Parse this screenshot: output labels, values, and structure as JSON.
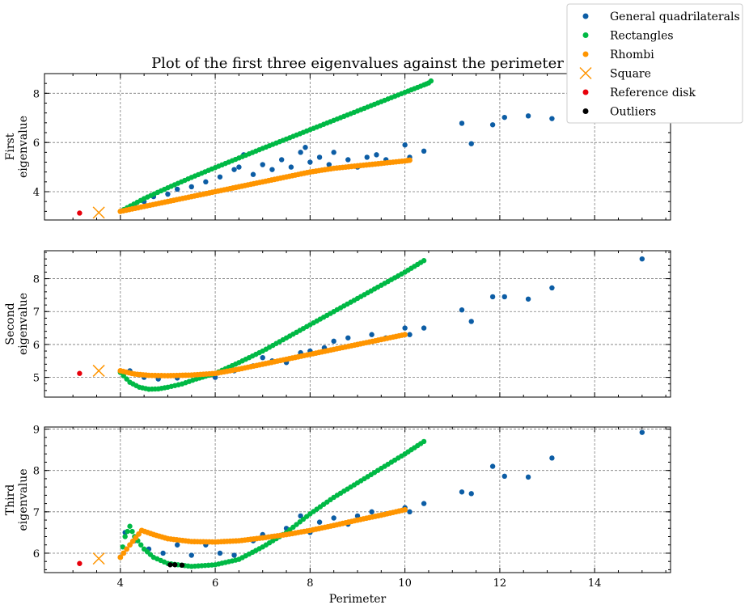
{
  "chart_data": {
    "type": "scatter",
    "title": "Plot of the first three eigenvalues against the perimeter",
    "xlabel": "Perimeter",
    "xlim": [
      2.4,
      15.6
    ],
    "x_ticks": [
      "4",
      "6",
      "8",
      "10",
      "12",
      "14"
    ],
    "grid": true,
    "legend_position": "top-right",
    "colors": {
      "general": "#0c5da5",
      "rectangles": "#00b945",
      "rhombi": "#ff9500",
      "square": "#ff9500",
      "disk": "#e8000b",
      "outliers": "#000000"
    },
    "legend": [
      {
        "key": "general",
        "label": "General quadrilaterals",
        "marker": "dot"
      },
      {
        "key": "rectangles",
        "label": "Rectangles",
        "marker": "dot"
      },
      {
        "key": "rhombi",
        "label": "Rhombi",
        "marker": "dot"
      },
      {
        "key": "square",
        "label": "Square",
        "marker": "cross"
      },
      {
        "key": "disk",
        "label": "Reference disk",
        "marker": "dot"
      },
      {
        "key": "outliers",
        "label": "Outliers",
        "marker": "dot"
      }
    ],
    "panels": [
      {
        "ylabel_line1": "First",
        "ylabel_line2": "eigenvalue",
        "ylim": [
          2.85,
          8.8
        ],
        "y_ticks": [
          "4",
          "6",
          "8"
        ],
        "square": {
          "x": 3.545,
          "y": 3.15
        },
        "disk": {
          "x": 3.14,
          "y": 3.13
        },
        "rectangles": [
          [
            4.0,
            3.2
          ],
          [
            4.5,
            3.72
          ],
          [
            5.0,
            4.16
          ],
          [
            5.5,
            4.58
          ],
          [
            6.0,
            4.98
          ],
          [
            6.5,
            5.37
          ],
          [
            7.0,
            5.76
          ],
          [
            7.5,
            6.14
          ],
          [
            8.0,
            6.52
          ],
          [
            8.5,
            6.9
          ],
          [
            9.0,
            7.28
          ],
          [
            9.5,
            7.66
          ],
          [
            10.0,
            8.04
          ],
          [
            10.4,
            8.34
          ],
          [
            10.5,
            8.42
          ],
          [
            10.55,
            8.5
          ]
        ],
        "rhombi": [
          [
            4.0,
            3.2
          ],
          [
            4.5,
            3.4
          ],
          [
            5.0,
            3.6
          ],
          [
            5.5,
            3.8
          ],
          [
            6.0,
            4.0
          ],
          [
            6.5,
            4.2
          ],
          [
            7.0,
            4.4
          ],
          [
            7.5,
            4.6
          ],
          [
            8.0,
            4.8
          ],
          [
            8.5,
            4.95
          ],
          [
            9.0,
            5.05
          ],
          [
            9.5,
            5.15
          ],
          [
            10.0,
            5.25
          ],
          [
            10.1,
            5.28
          ]
        ],
        "general": [
          [
            4.3,
            3.4
          ],
          [
            4.5,
            3.6
          ],
          [
            4.7,
            3.8
          ],
          [
            5.0,
            3.9
          ],
          [
            5.2,
            4.1
          ],
          [
            5.5,
            4.2
          ],
          [
            5.8,
            4.4
          ],
          [
            6.1,
            4.6
          ],
          [
            6.4,
            4.9
          ],
          [
            6.5,
            5.0
          ],
          [
            6.6,
            5.5
          ],
          [
            6.8,
            4.7
          ],
          [
            7.0,
            5.1
          ],
          [
            7.2,
            4.9
          ],
          [
            7.4,
            5.3
          ],
          [
            7.6,
            5.0
          ],
          [
            7.8,
            5.6
          ],
          [
            7.9,
            5.8
          ],
          [
            8.0,
            5.2
          ],
          [
            8.2,
            5.4
          ],
          [
            8.4,
            5.1
          ],
          [
            8.5,
            5.6
          ],
          [
            8.8,
            5.3
          ],
          [
            9.0,
            5.0
          ],
          [
            9.2,
            5.4
          ],
          [
            9.4,
            5.5
          ],
          [
            9.6,
            5.3
          ],
          [
            10.0,
            5.9
          ],
          [
            10.1,
            5.4
          ],
          [
            10.4,
            5.65
          ],
          [
            11.2,
            6.78
          ],
          [
            11.4,
            5.95
          ],
          [
            11.85,
            6.72
          ],
          [
            12.1,
            7.02
          ],
          [
            12.6,
            7.08
          ],
          [
            13.1,
            6.97
          ]
        ],
        "outliers": []
      },
      {
        "ylabel_line1": "Second",
        "ylabel_line2": "eigenvalue",
        "ylim": [
          4.4,
          8.85
        ],
        "y_ticks": [
          "5",
          "6",
          "7",
          "8"
        ],
        "square": {
          "x": 3.545,
          "y": 5.2
        },
        "disk": {
          "x": 3.14,
          "y": 5.12
        },
        "rectangles": [
          [
            4.0,
            5.15
          ],
          [
            4.2,
            4.85
          ],
          [
            4.4,
            4.7
          ],
          [
            4.6,
            4.64
          ],
          [
            4.8,
            4.65
          ],
          [
            5.0,
            4.7
          ],
          [
            5.3,
            4.8
          ],
          [
            5.6,
            4.95
          ],
          [
            6.0,
            5.12
          ],
          [
            6.5,
            5.45
          ],
          [
            7.0,
            5.8
          ],
          [
            7.5,
            6.2
          ],
          [
            8.0,
            6.6
          ],
          [
            8.5,
            7.0
          ],
          [
            9.0,
            7.4
          ],
          [
            9.5,
            7.8
          ],
          [
            10.0,
            8.2
          ],
          [
            10.4,
            8.55
          ]
        ],
        "rhombi": [
          [
            4.0,
            5.2
          ],
          [
            4.3,
            5.1
          ],
          [
            4.6,
            5.06
          ],
          [
            5.0,
            5.05
          ],
          [
            5.5,
            5.07
          ],
          [
            6.0,
            5.12
          ],
          [
            6.5,
            5.25
          ],
          [
            7.0,
            5.4
          ],
          [
            7.5,
            5.55
          ],
          [
            8.0,
            5.7
          ],
          [
            8.5,
            5.85
          ],
          [
            9.0,
            6.0
          ],
          [
            9.5,
            6.15
          ],
          [
            10.0,
            6.3
          ]
        ],
        "general": [
          [
            4.2,
            5.2
          ],
          [
            4.5,
            5.0
          ],
          [
            4.8,
            4.95
          ],
          [
            5.2,
            4.98
          ],
          [
            5.6,
            5.05
          ],
          [
            6.0,
            5.0
          ],
          [
            6.4,
            5.2
          ],
          [
            6.8,
            5.35
          ],
          [
            7.0,
            5.6
          ],
          [
            7.2,
            5.5
          ],
          [
            7.5,
            5.45
          ],
          [
            7.8,
            5.75
          ],
          [
            8.0,
            5.8
          ],
          [
            8.3,
            5.9
          ],
          [
            8.5,
            6.1
          ],
          [
            8.8,
            6.2
          ],
          [
            9.0,
            6.0
          ],
          [
            9.3,
            6.3
          ],
          [
            9.6,
            6.2
          ],
          [
            10.0,
            6.5
          ],
          [
            10.1,
            6.3
          ],
          [
            10.4,
            6.5
          ],
          [
            11.2,
            7.05
          ],
          [
            11.4,
            6.7
          ],
          [
            11.85,
            7.45
          ],
          [
            12.1,
            7.45
          ],
          [
            12.6,
            7.38
          ],
          [
            13.1,
            7.72
          ],
          [
            15.0,
            8.6
          ]
        ],
        "outliers": []
      },
      {
        "ylabel_line1": "Third",
        "ylabel_line2": "eigenvalue",
        "ylim": [
          5.53,
          9.05
        ],
        "y_ticks": [
          "6",
          "7",
          "8",
          "9"
        ],
        "square": {
          "x": 3.545,
          "y": 5.87
        },
        "disk": {
          "x": 3.14,
          "y": 5.75
        },
        "rectangles": [
          [
            4.0,
            5.9
          ],
          [
            4.1,
            6.4
          ],
          [
            4.2,
            6.65
          ],
          [
            4.3,
            6.4
          ],
          [
            4.5,
            6.1
          ],
          [
            4.7,
            5.9
          ],
          [
            5.0,
            5.75
          ],
          [
            5.5,
            5.68
          ],
          [
            6.0,
            5.72
          ],
          [
            6.5,
            5.85
          ],
          [
            7.0,
            6.15
          ],
          [
            7.5,
            6.5
          ],
          [
            8.0,
            6.95
          ],
          [
            8.5,
            7.35
          ],
          [
            9.0,
            7.7
          ],
          [
            9.5,
            8.05
          ],
          [
            10.0,
            8.4
          ],
          [
            10.4,
            8.7
          ]
        ],
        "rhombi": [
          [
            4.0,
            5.9
          ],
          [
            4.2,
            6.2
          ],
          [
            4.45,
            6.55
          ],
          [
            4.7,
            6.45
          ],
          [
            5.0,
            6.35
          ],
          [
            5.5,
            6.28
          ],
          [
            6.0,
            6.27
          ],
          [
            6.5,
            6.3
          ],
          [
            7.0,
            6.37
          ],
          [
            7.5,
            6.45
          ],
          [
            8.0,
            6.55
          ],
          [
            8.5,
            6.67
          ],
          [
            9.0,
            6.8
          ],
          [
            9.5,
            6.92
          ],
          [
            10.0,
            7.05
          ]
        ],
        "general": [
          [
            4.1,
            6.5
          ],
          [
            4.3,
            6.3
          ],
          [
            4.6,
            6.1
          ],
          [
            4.9,
            6.0
          ],
          [
            5.2,
            6.2
          ],
          [
            5.5,
            5.95
          ],
          [
            5.8,
            6.2
          ],
          [
            6.1,
            6.0
          ],
          [
            6.4,
            5.95
          ],
          [
            6.8,
            6.3
          ],
          [
            7.0,
            6.45
          ],
          [
            7.2,
            6.4
          ],
          [
            7.5,
            6.6
          ],
          [
            7.8,
            6.9
          ],
          [
            8.0,
            6.5
          ],
          [
            8.2,
            6.75
          ],
          [
            8.5,
            6.85
          ],
          [
            8.8,
            6.7
          ],
          [
            9.0,
            6.9
          ],
          [
            9.3,
            7.0
          ],
          [
            9.6,
            6.95
          ],
          [
            10.0,
            7.1
          ],
          [
            10.1,
            7.0
          ],
          [
            10.4,
            7.2
          ],
          [
            11.2,
            7.48
          ],
          [
            11.4,
            7.44
          ],
          [
            11.85,
            8.1
          ],
          [
            12.1,
            7.86
          ],
          [
            12.6,
            7.84
          ],
          [
            13.1,
            8.3
          ],
          [
            15.0,
            8.92
          ]
        ],
        "outliers": [
          [
            5.05,
            5.72
          ],
          [
            5.15,
            5.72
          ],
          [
            5.3,
            5.71
          ]
        ]
      }
    ]
  }
}
